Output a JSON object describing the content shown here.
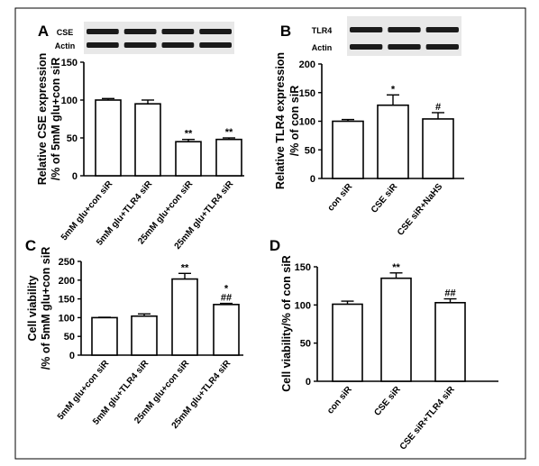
{
  "chart_data": [
    {
      "panel": "A",
      "type": "bar",
      "blot": {
        "labels": [
          "CSE",
          "Actin"
        ]
      },
      "categories": [
        "5mM glu+con siR",
        "5mM glu+TLR4 siR",
        "25mM glu+con siR",
        "25mM glu+TLR4 siR"
      ],
      "values": [
        100,
        95,
        45,
        48
      ],
      "errors": [
        2,
        5,
        3,
        2
      ],
      "annotations": [
        "",
        "",
        "**",
        "**"
      ],
      "ylabel": "Relative CSE expression\n/% of 5mM glu+con siR",
      "ylim": [
        0,
        150
      ],
      "yticks": [
        0,
        50,
        100,
        150
      ],
      "grid": false
    },
    {
      "panel": "B",
      "type": "bar",
      "blot": {
        "labels": [
          "TLR4",
          "Actin"
        ]
      },
      "categories": [
        "con siR",
        "CSE siR",
        "CSE siR+NaHS"
      ],
      "values": [
        100,
        128,
        104
      ],
      "errors": [
        3,
        18,
        11
      ],
      "annotations": [
        "",
        "*",
        "#"
      ],
      "ylabel": "Relative TLR4 expression\n/% of con siR",
      "ylim": [
        0,
        200
      ],
      "yticks": [
        0,
        50,
        100,
        150,
        200
      ],
      "grid": false
    },
    {
      "panel": "C",
      "type": "bar",
      "categories": [
        "5mM glu+con siR",
        "5mM glu+TLR4 siR",
        "25mM glu+con siR",
        "25mM glu+TLR4 siR"
      ],
      "values": [
        100,
        104,
        203,
        135
      ],
      "errors": [
        1,
        6,
        15,
        3
      ],
      "annotations": [
        "",
        "",
        "**",
        "*\n##"
      ],
      "ylabel": "Cell viability\n/% of 5mM glu+con siR",
      "ylim": [
        0,
        250
      ],
      "yticks": [
        0,
        50,
        100,
        150,
        200,
        250
      ],
      "grid": false
    },
    {
      "panel": "D",
      "type": "bar",
      "categories": [
        "con siR",
        "CSE siR",
        "CSE siR+TLR4 siR"
      ],
      "values": [
        101,
        135,
        103
      ],
      "errors": [
        4,
        7,
        5
      ],
      "annotations": [
        "",
        "**",
        "##"
      ],
      "ylabel": "Cell viability/% of con siR",
      "ylim": [
        0,
        150
      ],
      "yticks": [
        0,
        50,
        100,
        150
      ],
      "grid": false
    }
  ]
}
